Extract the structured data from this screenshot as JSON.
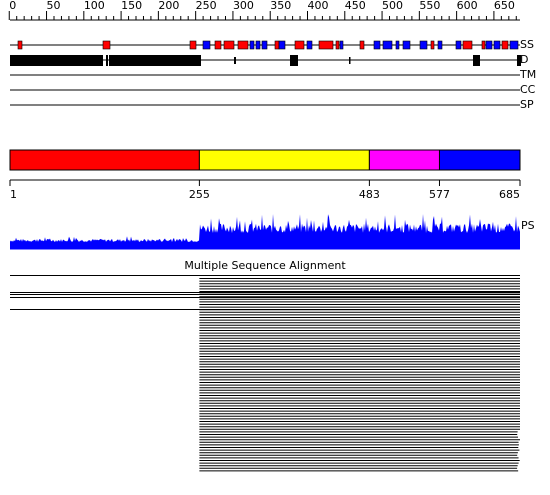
{
  "ruler_ticks": [
    0,
    50,
    100,
    150,
    200,
    250,
    300,
    350,
    400,
    450,
    500,
    550,
    600,
    650
  ],
  "tracks": [
    "SS",
    "D",
    "TM",
    "CC",
    "SP"
  ],
  "domain_boundaries": [
    1,
    255,
    483,
    577,
    685
  ],
  "domain_colors": [
    "#ff0000",
    "#ffff00",
    "#ff00ff",
    "#0000ff"
  ],
  "profile_label": "PS",
  "alignment_title": "Multiple Sequence Alignment"
}
